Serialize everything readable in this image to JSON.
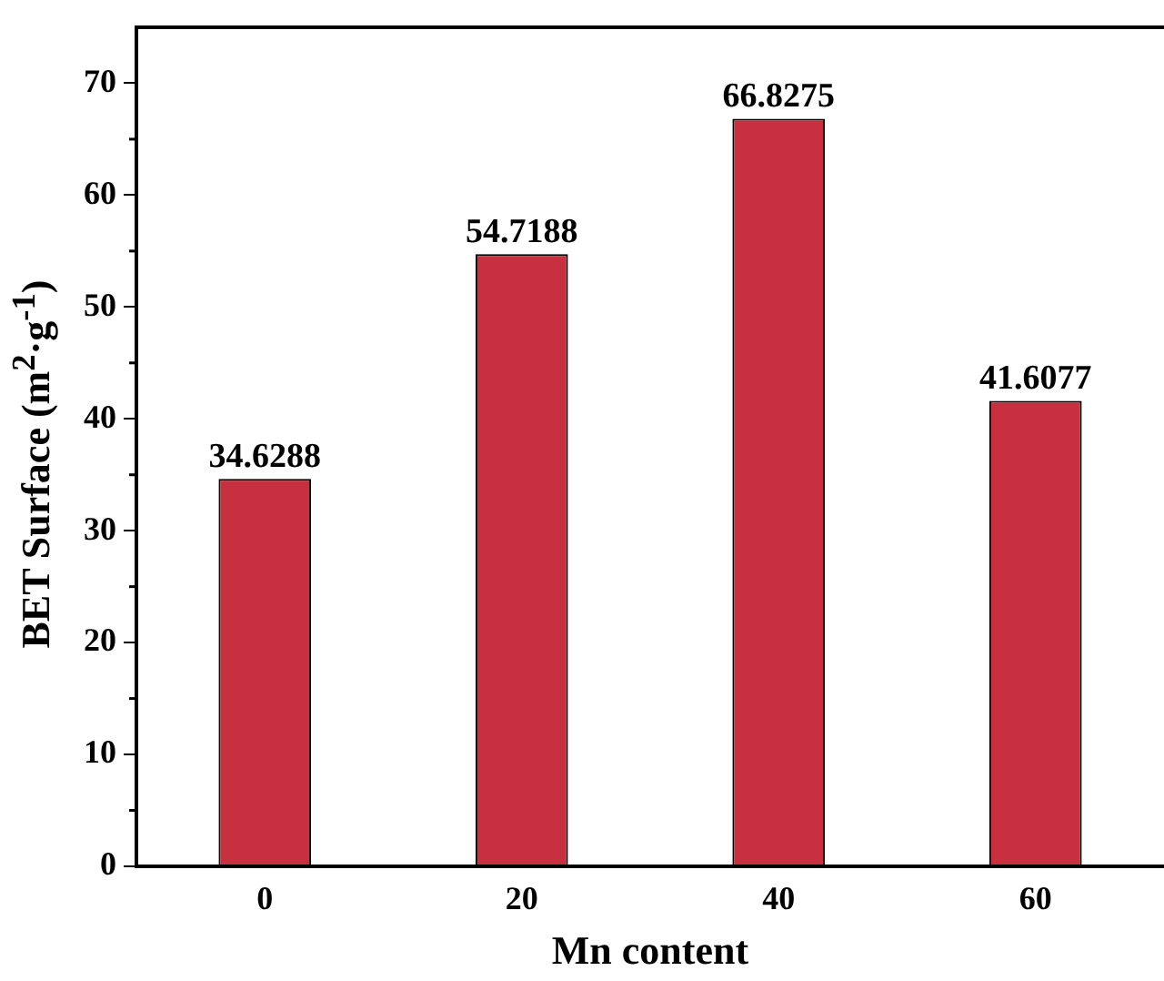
{
  "chart_data": {
    "type": "bar",
    "xlabel": "Mn content",
    "ylabel": "BET Surface (m$^{2}$·g$^{-1}$)",
    "categories": [
      "0",
      "20",
      "40",
      "60"
    ],
    "values": [
      34.6288,
      54.7188,
      66.8275,
      41.6077
    ],
    "color": "#c8303f",
    "ylim": [
      0,
      75
    ],
    "yticks": [
      0,
      10,
      20,
      30,
      40,
      50,
      60,
      70
    ],
    "data_labels": true,
    "grid": false,
    "legend": false
  }
}
